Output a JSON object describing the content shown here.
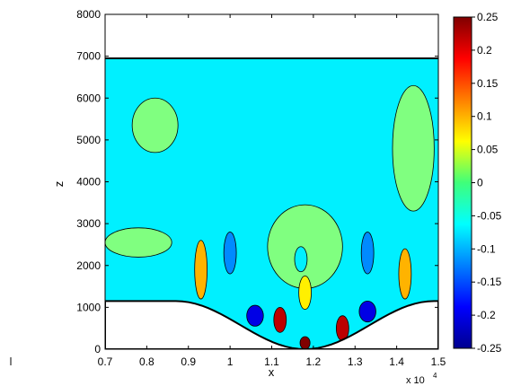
{
  "chart_data": {
    "type": "heatmap",
    "title": "",
    "xlabel": "x",
    "ylabel": "z",
    "x_exponent_label": "x 10",
    "x_exponent_power": "4",
    "xlim": [
      0.7,
      1.5
    ],
    "ylim": [
      0,
      8000
    ],
    "x_ticks": [
      0.7,
      0.8,
      0.9,
      1.0,
      1.1,
      1.2,
      1.3,
      1.4,
      1.5
    ],
    "x_tick_labels": [
      "0.7",
      "0.8",
      "0.9",
      "1",
      "1.1",
      "1.2",
      "1.3",
      "1.4",
      "1.5"
    ],
    "y_ticks": [
      0,
      1000,
      2000,
      3000,
      4000,
      5000,
      6000,
      7000,
      8000
    ],
    "y_tick_labels": [
      "0",
      "1000",
      "2000",
      "3000",
      "4000",
      "5000",
      "6000",
      "7000",
      "8000"
    ],
    "colorbar": {
      "range": [
        -0.25,
        0.25
      ],
      "ticks": [
        -0.25,
        -0.2,
        -0.15,
        -0.1,
        -0.05,
        0,
        0.05,
        0.1,
        0.15,
        0.2,
        0.25
      ],
      "tick_labels": [
        "-0.25",
        "-0.2",
        "-0.15",
        "-0.1",
        "-0.05",
        "0",
        "0.05",
        "0.1",
        "0.15",
        "0.2",
        "0.25"
      ],
      "colormap": "jet"
    },
    "domain_top": 6950,
    "terrain": {
      "base_height": 1150,
      "valley_start": 0.87,
      "valley_end": 1.49,
      "valley_min": 0
    },
    "background_value": -0.07,
    "features": [
      {
        "name": "upper-left-cell",
        "x": 0.82,
        "z": 5350,
        "rx": 0.055,
        "rz": 650,
        "value": 0.0
      },
      {
        "name": "upper-right-cell",
        "x": 1.44,
        "z": 4800,
        "rx": 0.05,
        "rz": 1500,
        "value": 0.0
      },
      {
        "name": "central-plume",
        "x": 1.18,
        "z": 2450,
        "rx": 0.09,
        "rz": 1000,
        "value": 0.0
      },
      {
        "name": "central-hole",
        "x": 1.17,
        "z": 2150,
        "rx": 0.015,
        "rz": 300,
        "value": -0.07
      },
      {
        "name": "left-streak",
        "x": 0.78,
        "z": 2550,
        "rx": 0.08,
        "rz": 350,
        "value": 0.0
      },
      {
        "name": "blue-left",
        "x": 1.0,
        "z": 2300,
        "rx": 0.015,
        "rz": 500,
        "value": -0.12
      },
      {
        "name": "blue-right",
        "x": 1.33,
        "z": 2300,
        "rx": 0.015,
        "rz": 500,
        "value": -0.12
      },
      {
        "name": "orange-left",
        "x": 0.93,
        "z": 1900,
        "rx": 0.015,
        "rz": 700,
        "value": 0.1
      },
      {
        "name": "orange-right",
        "x": 1.42,
        "z": 1800,
        "rx": 0.015,
        "rz": 600,
        "value": 0.1
      },
      {
        "name": "core-yellow",
        "x": 1.18,
        "z": 1350,
        "rx": 0.015,
        "rz": 400,
        "value": 0.07
      },
      {
        "name": "core-red-left",
        "x": 1.12,
        "z": 700,
        "rx": 0.015,
        "rz": 300,
        "value": 0.22
      },
      {
        "name": "core-red-right",
        "x": 1.27,
        "z": 500,
        "rx": 0.015,
        "rz": 300,
        "value": 0.22
      },
      {
        "name": "core-blue",
        "x": 1.06,
        "z": 800,
        "rx": 0.02,
        "rz": 250,
        "value": -0.2
      },
      {
        "name": "core-blue-2",
        "x": 1.33,
        "z": 900,
        "rx": 0.02,
        "rz": 250,
        "value": -0.2
      },
      {
        "name": "bottom-red",
        "x": 1.18,
        "z": 150,
        "rx": 0.012,
        "rz": 150,
        "value": 0.25
      }
    ]
  }
}
